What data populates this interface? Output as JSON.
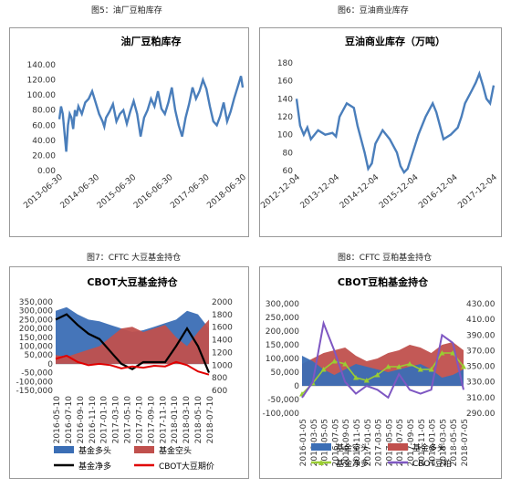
{
  "captions": {
    "fig5": "图5：油厂豆粕库存",
    "fig6": "图6：豆油商业库存",
    "fig7": "图7：CFTC 大豆基金持仓",
    "fig8": "图8：CFTC 豆粕基金持仓"
  },
  "colors": {
    "line_blue": "#4a7ebb",
    "long_blue": "#3b6eb5",
    "short_red": "#c0504d",
    "net_black": "#000000",
    "price_red": "#e00000",
    "net_green": "#9acd32",
    "price_purple": "#7e57c2"
  },
  "chart_data": [
    {
      "type": "line",
      "title": "油厂豆粕库存",
      "ylim": [
        0,
        140
      ],
      "y_ticks": [
        "0.00",
        "20.00",
        "40.00",
        "60.00",
        "80.00",
        "100.00",
        "120.00",
        "140.00"
      ],
      "x_ticks": [
        "2013-06-30",
        "2014-06-30",
        "2015-06-30",
        "2016-06-30",
        "2017-06-30",
        "2018-06-30"
      ],
      "x_range": [
        2013.45,
        2018.75
      ],
      "series": [
        {
          "x": [
            2013.45,
            2013.5,
            2013.55,
            2013.6,
            2013.65,
            2013.7,
            2013.75,
            2013.8,
            2013.85,
            2013.9,
            2013.95,
            2014.0,
            2014.1,
            2014.2,
            2014.3,
            2014.4,
            2014.5,
            2014.6,
            2014.7,
            2014.75,
            2014.8,
            2014.9,
            2015.0,
            2015.1,
            2015.2,
            2015.3,
            2015.4,
            2015.5,
            2015.6,
            2015.7,
            2015.8,
            2015.9,
            2016.0,
            2016.1,
            2016.2,
            2016.3,
            2016.4,
            2016.5,
            2016.6,
            2016.7,
            2016.8,
            2016.9,
            2017.0,
            2017.1,
            2017.2,
            2017.3,
            2017.4,
            2017.5,
            2017.6,
            2017.7,
            2017.8,
            2017.9,
            2018.0,
            2018.1,
            2018.2,
            2018.3,
            2018.4,
            2018.5,
            2018.6,
            2018.7,
            2018.75
          ],
          "y": [
            68,
            85,
            75,
            50,
            25,
            60,
            75,
            70,
            55,
            80,
            72,
            85,
            75,
            90,
            95,
            105,
            90,
            75,
            65,
            58,
            70,
            78,
            88,
            65,
            75,
            80,
            62,
            78,
            92,
            75,
            45,
            70,
            80,
            95,
            85,
            105,
            82,
            75,
            90,
            110,
            80,
            60,
            45,
            70,
            88,
            110,
            95,
            105,
            120,
            108,
            85,
            65,
            60,
            72,
            90,
            65,
            78,
            95,
            110,
            125,
            110
          ]
        }
      ]
    },
    {
      "type": "line",
      "title": "豆油商业库存（万吨）",
      "ylim": [
        60,
        180
      ],
      "y_ticks": [
        "60",
        "80",
        "100",
        "120",
        "140",
        "160",
        "180"
      ],
      "x_ticks": [
        "2012-12-04",
        "2013-12-04",
        "2014-12-04",
        "2015-12-04",
        "2016-12-04",
        "2017-12-04"
      ],
      "x_range": [
        2012.9,
        2018.4
      ],
      "series": [
        {
          "x": [
            2012.9,
            2013.0,
            2013.1,
            2013.2,
            2013.3,
            2013.5,
            2013.7,
            2013.9,
            2014.0,
            2014.1,
            2014.3,
            2014.5,
            2014.6,
            2014.7,
            2014.8,
            2014.9,
            2015.0,
            2015.1,
            2015.3,
            2015.5,
            2015.7,
            2015.8,
            2015.9,
            2016.0,
            2016.1,
            2016.3,
            2016.5,
            2016.7,
            2016.8,
            2016.9,
            2017.0,
            2017.2,
            2017.4,
            2017.5,
            2017.6,
            2017.8,
            2017.9,
            2018.0,
            2018.1,
            2018.2,
            2018.3,
            2018.4
          ],
          "y": [
            140,
            110,
            100,
            108,
            95,
            105,
            100,
            102,
            98,
            120,
            135,
            130,
            110,
            95,
            80,
            62,
            68,
            90,
            105,
            95,
            80,
            65,
            58,
            62,
            75,
            100,
            120,
            135,
            125,
            110,
            95,
            100,
            108,
            120,
            135,
            150,
            158,
            168,
            155,
            140,
            135,
            155
          ]
        }
      ]
    },
    {
      "type": "area",
      "title": "CBOT大豆基金持仓",
      "ylim": [
        -150000,
        350000
      ],
      "y2lim": [
        600,
        2000
      ],
      "y_ticks": [
        "350,000",
        "300,000",
        "250,000",
        "200,000",
        "150,000",
        "100,000",
        "50,000",
        "0",
        "-50,000",
        "-100,000",
        "-150,000"
      ],
      "y2_ticks": [
        "2000",
        "1800",
        "1600",
        "1400",
        "1200",
        "1000",
        "800",
        "600"
      ],
      "x_ticks": [
        "2016-05-10",
        "2016-07-10",
        "2016-09-10",
        "2016-11-10",
        "2017-01-10",
        "2017-03-10",
        "2017-05-10",
        "2017-07-10",
        "2017-09-10",
        "2017-11-10",
        "2018-01-10",
        "2018-03-10",
        "2018-05-10",
        "2018-07-10"
      ],
      "x_range": [
        0,
        14
      ],
      "legend": [
        "基金多头",
        "基金空头",
        "基金净多",
        "CBOT大豆期价"
      ],
      "series": [
        {
          "name": "基金多头",
          "x": [
            0,
            1,
            2,
            3,
            4,
            5,
            6,
            7,
            8,
            9,
            10,
            11,
            12,
            13,
            14
          ],
          "values": [
            300000,
            320000,
            280000,
            250000,
            240000,
            220000,
            200000,
            180000,
            190000,
            210000,
            230000,
            250000,
            300000,
            280000,
            200000
          ]
        },
        {
          "name": "基金空头",
          "x": [
            0,
            1,
            2,
            3,
            4,
            5,
            6,
            7,
            8,
            9,
            10,
            11,
            12,
            13,
            14
          ],
          "values": [
            50000,
            40000,
            60000,
            80000,
            100000,
            150000,
            200000,
            210000,
            180000,
            200000,
            220000,
            150000,
            100000,
            180000,
            250000
          ]
        },
        {
          "name": "基金净多",
          "x": [
            0,
            1,
            2,
            3,
            4,
            5,
            6,
            7,
            8,
            9,
            10,
            11,
            12,
            13,
            14
          ],
          "values": [
            250000,
            280000,
            220000,
            170000,
            140000,
            70000,
            0,
            -30000,
            10000,
            10000,
            10000,
            100000,
            200000,
            100000,
            -50000
          ]
        },
        {
          "name": "CBOT大豆期价",
          "x": [
            0,
            1,
            2,
            3,
            4,
            5,
            6,
            7,
            8,
            9,
            10,
            11,
            12,
            13,
            14
          ],
          "values": [
            1100,
            1150,
            1050,
            1000,
            1020,
            1000,
            950,
            980,
            960,
            990,
            980,
            1050,
            1000,
            900,
            850
          ]
        }
      ]
    },
    {
      "type": "area",
      "title": "CBOT豆粕基金持仓",
      "ylim": [
        -100000,
        300000
      ],
      "y2lim": [
        290,
        430
      ],
      "y_ticks": [
        "300,000",
        "250,000",
        "200,000",
        "150,000",
        "100,000",
        "50,000",
        "0",
        "-50,000",
        "-100,000"
      ],
      "y2_ticks": [
        "430.00",
        "410.00",
        "390.00",
        "370.00",
        "350.00",
        "330.00",
        "310.00",
        "290.00"
      ],
      "x_ticks": [
        "2016-01-05",
        "2016-03-05",
        "2016-05-05",
        "2016-07-05",
        "2016-09-05",
        "2016-11-05",
        "2017-01-05",
        "2017-03-05",
        "2017-05-05",
        "2017-07-05",
        "2017-09-05",
        "2017-11-05",
        "2018-01-05",
        "2018-03-05",
        "2018-05-05",
        "2018-07-05"
      ],
      "x_range": [
        0,
        15
      ],
      "legend": [
        "基金空头",
        "基金多头",
        "基金净多",
        "CBOT豆粕"
      ],
      "series": [
        {
          "name": "基金空头",
          "x": [
            0,
            1,
            2,
            3,
            4,
            5,
            6,
            7,
            8,
            9,
            10,
            11,
            12,
            13,
            14,
            15
          ],
          "values": [
            110000,
            90000,
            60000,
            40000,
            60000,
            80000,
            70000,
            60000,
            50000,
            60000,
            70000,
            80000,
            60000,
            30000,
            40000,
            60000
          ]
        },
        {
          "name": "基金多头",
          "x": [
            0,
            1,
            2,
            3,
            4,
            5,
            6,
            7,
            8,
            9,
            10,
            11,
            12,
            13,
            14,
            15
          ],
          "values": [
            80000,
            100000,
            120000,
            130000,
            140000,
            110000,
            90000,
            100000,
            120000,
            130000,
            150000,
            140000,
            120000,
            150000,
            160000,
            130000
          ]
        },
        {
          "name": "基金净多",
          "x": [
            0,
            1,
            2,
            3,
            4,
            5,
            6,
            7,
            8,
            9,
            10,
            11,
            12,
            13,
            14,
            15
          ],
          "values": [
            -30000,
            10000,
            60000,
            90000,
            80000,
            30000,
            20000,
            40000,
            70000,
            70000,
            80000,
            60000,
            60000,
            120000,
            120000,
            70000
          ]
        },
        {
          "name": "CBOT豆粕",
          "x": [
            0,
            1,
            2,
            3,
            4,
            5,
            6,
            7,
            8,
            9,
            10,
            11,
            12,
            13,
            14,
            15
          ],
          "values": [
            310,
            330,
            405,
            370,
            330,
            315,
            325,
            320,
            310,
            340,
            320,
            315,
            320,
            390,
            380,
            320
          ]
        }
      ]
    }
  ]
}
